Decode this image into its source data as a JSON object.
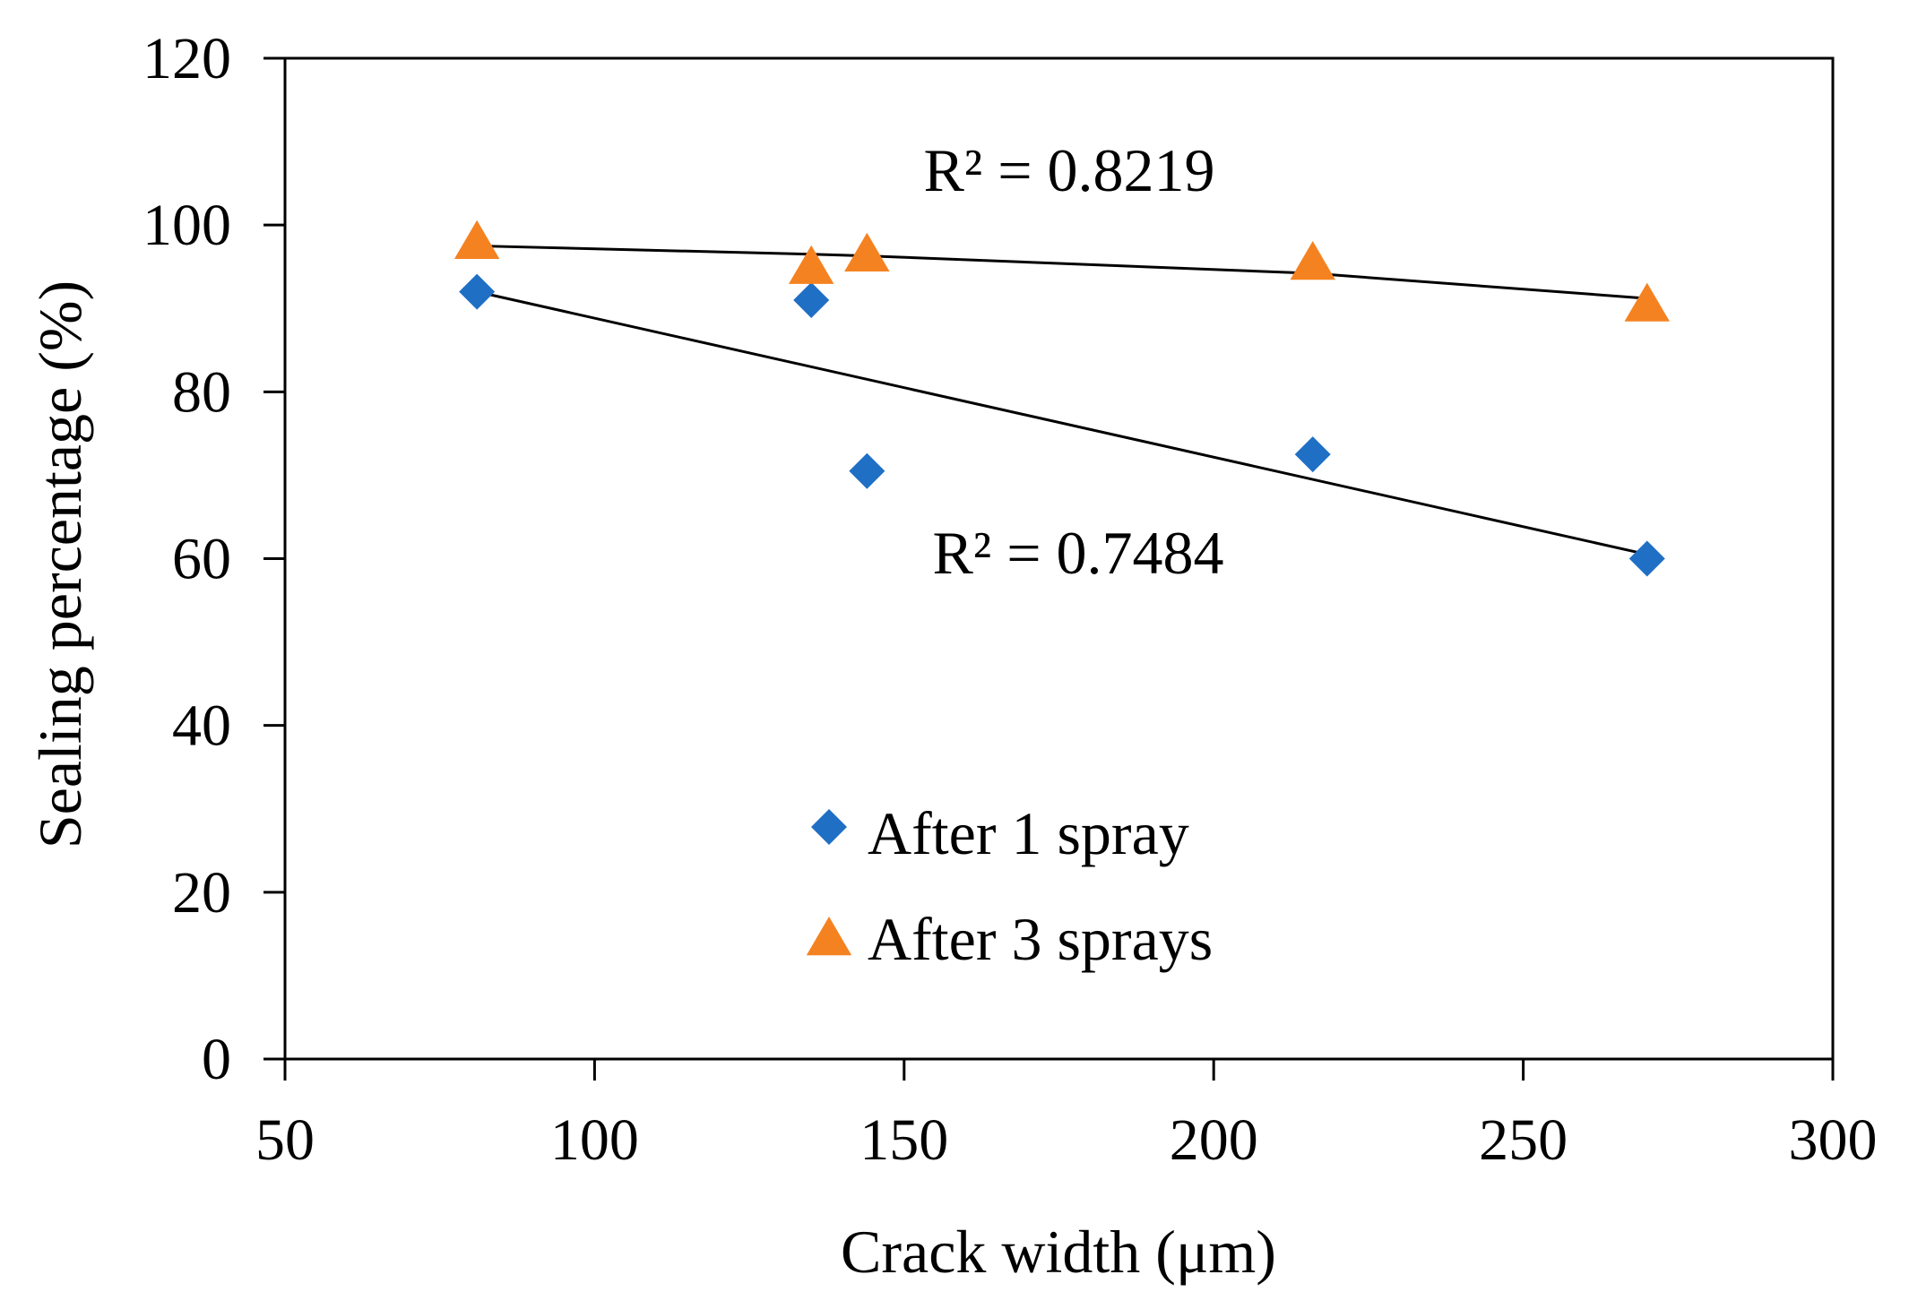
{
  "chart_data": {
    "type": "scatter",
    "xlabel": "Crack width (μm)",
    "ylabel": "Sealing percentage (%)",
    "xlim": [
      50,
      300
    ],
    "ylim": [
      0,
      120
    ],
    "xticks": [
      50,
      100,
      150,
      200,
      250,
      300
    ],
    "yticks": [
      0,
      20,
      40,
      60,
      80,
      100,
      120
    ],
    "grid": false,
    "legend_position": "bottom-center",
    "series": [
      {
        "name": "After 1 spray",
        "marker": "diamond",
        "color": "#1F6FC5",
        "x": [
          81,
          135,
          144,
          216,
          270
        ],
        "y": [
          92,
          91,
          70.5,
          72.5,
          60
        ],
        "trendline": {
          "type": "linear",
          "x": [
            81,
            270
          ],
          "y": [
            92,
            60.5
          ]
        },
        "r2_label": "R² = 0.7484"
      },
      {
        "name": "After 3 sprays",
        "marker": "triangle",
        "color": "#F58220",
        "x": [
          81,
          135,
          144,
          216,
          270
        ],
        "y": [
          98,
          95,
          96.5,
          95.5,
          90.5
        ],
        "trendline": {
          "type": "polynomial",
          "x": [
            81,
            135,
            144,
            216,
            270
          ],
          "y": [
            97.5,
            96.5,
            96.3,
            94.2,
            91.2
          ]
        },
        "r2_label": "R² = 0.8219"
      }
    ]
  }
}
